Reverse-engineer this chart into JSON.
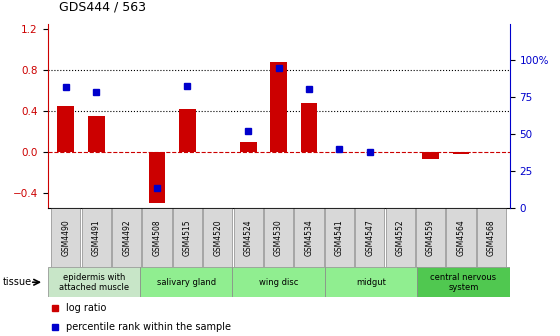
{
  "title": "GDS444 / 563",
  "samples": [
    "GSM4490",
    "GSM4491",
    "GSM4492",
    "GSM4508",
    "GSM4515",
    "GSM4520",
    "GSM4524",
    "GSM4530",
    "GSM4534",
    "GSM4541",
    "GSM4547",
    "GSM4552",
    "GSM4559",
    "GSM4564",
    "GSM4568"
  ],
  "log_ratio": [
    0.45,
    0.35,
    0.0,
    -0.5,
    0.42,
    0.0,
    0.1,
    0.88,
    0.48,
    0.0,
    0.0,
    0.0,
    -0.07,
    -0.02,
    0.0
  ],
  "percentile": [
    82,
    79,
    null,
    14,
    83,
    null,
    52,
    95,
    81,
    40,
    38,
    null,
    null,
    null,
    null
  ],
  "tissues": [
    {
      "label": "epidermis with\nattached muscle",
      "start": 0,
      "end": 3,
      "color": "#c8e6c8"
    },
    {
      "label": "salivary gland",
      "start": 3,
      "end": 6,
      "color": "#90ee90"
    },
    {
      "label": "wing disc",
      "start": 6,
      "end": 9,
      "color": "#90ee90"
    },
    {
      "label": "midgut",
      "start": 9,
      "end": 12,
      "color": "#90ee90"
    },
    {
      "label": "central nervous\nsystem",
      "start": 12,
      "end": 15,
      "color": "#50c850"
    }
  ],
  "bar_color": "#cc0000",
  "dot_color": "#0000cc",
  "ylim_left": [
    -0.55,
    1.25
  ],
  "ylim_right": [
    0,
    125
  ],
  "yticks_left": [
    -0.4,
    0.0,
    0.4,
    0.8,
    1.2
  ],
  "yticks_right": [
    0,
    25,
    50,
    75,
    100
  ],
  "hlines": [
    0.4,
    0.8
  ],
  "background_color": "#ffffff"
}
